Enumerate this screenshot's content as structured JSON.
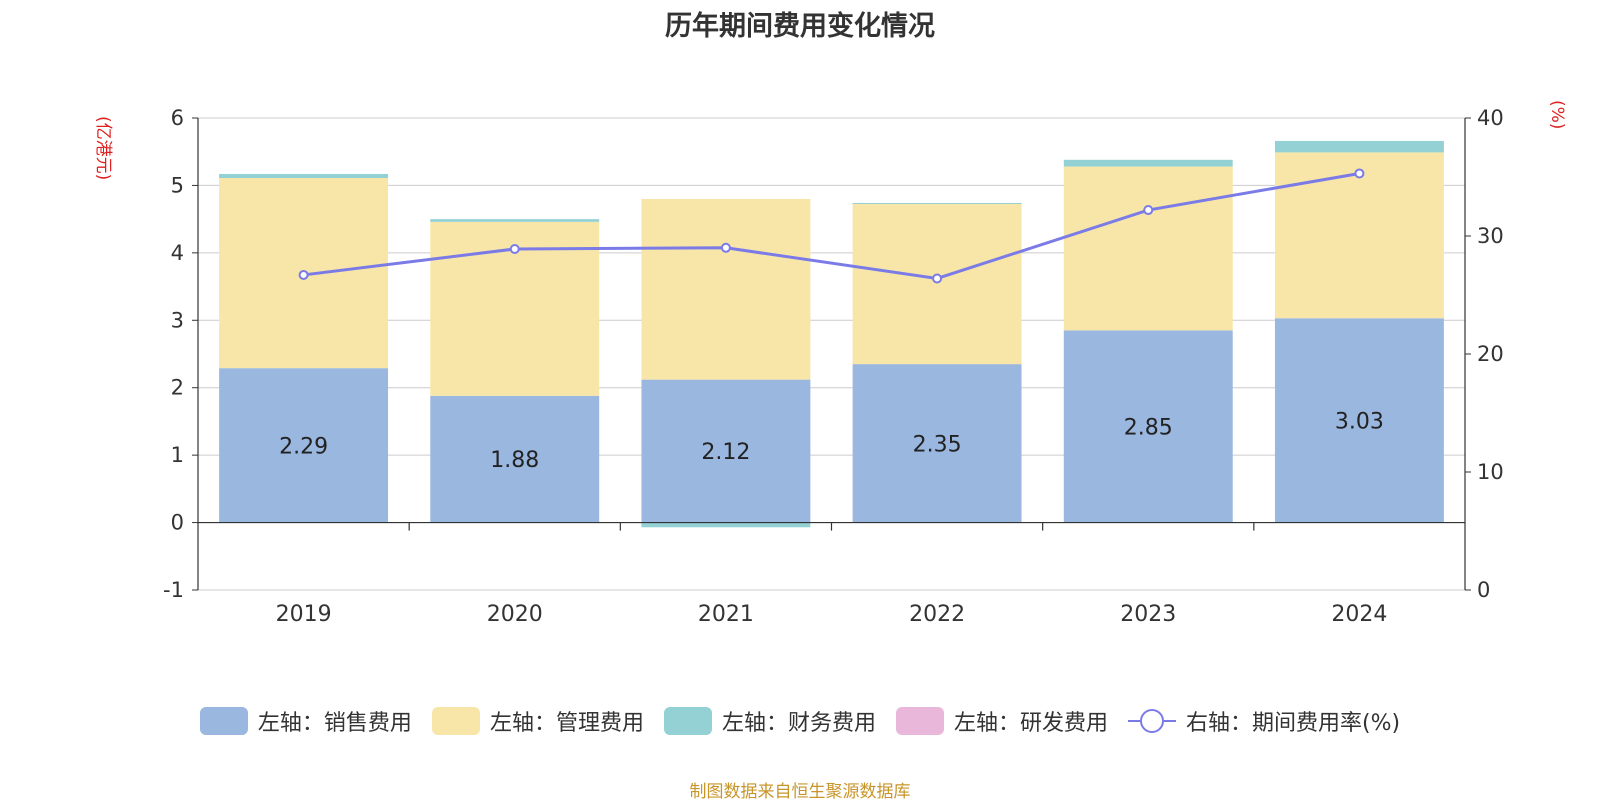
{
  "title": "历年期间费用变化情况",
  "source": "制图数据来自恒生聚源数据库",
  "colors": {
    "sales": "#9ab7e0",
    "admin": "#f7e6a8",
    "finance": "#93d1d4",
    "rd": "#e8b7d9",
    "rate": "#7b7be8"
  },
  "chart_data": {
    "type": "bar",
    "title": "历年期间费用变化情况",
    "categories": [
      "2019",
      "2020",
      "2021",
      "2022",
      "2023",
      "2024"
    ],
    "left_axis": {
      "label": "(亿港元)",
      "ylim": [
        -1,
        6
      ],
      "ticks": [
        "6",
        "5",
        "4",
        "3",
        "2",
        "1",
        "0",
        "-1"
      ]
    },
    "right_axis": {
      "label": "(%)",
      "ylim": [
        0,
        40
      ],
      "ticks": [
        "40",
        "30",
        "20",
        "10",
        "0"
      ]
    },
    "series": [
      {
        "name": "左轴：销售费用",
        "stack": true,
        "values": [
          2.29,
          1.88,
          2.12,
          2.35,
          2.85,
          3.03
        ],
        "labels": [
          "2.29",
          "1.88",
          "2.12",
          "2.35",
          "2.85",
          "3.03"
        ]
      },
      {
        "name": "左轴：管理费用",
        "stack": true,
        "values": [
          2.82,
          2.58,
          2.68,
          2.38,
          2.43,
          2.46
        ]
      },
      {
        "name": "左轴：财务费用",
        "stack": true,
        "values": [
          0.06,
          0.04,
          -0.07,
          0.01,
          0.1,
          0.17
        ]
      },
      {
        "name": "左轴：研发费用",
        "stack": true,
        "values": [
          0,
          0,
          0,
          0,
          0,
          0
        ]
      },
      {
        "name": "右轴：期间费用率(%)",
        "type": "line",
        "axis": "right",
        "values": [
          26.7,
          28.9,
          29.0,
          26.4,
          32.2,
          35.3
        ]
      }
    ],
    "grid": true,
    "legend_position": "bottom"
  }
}
